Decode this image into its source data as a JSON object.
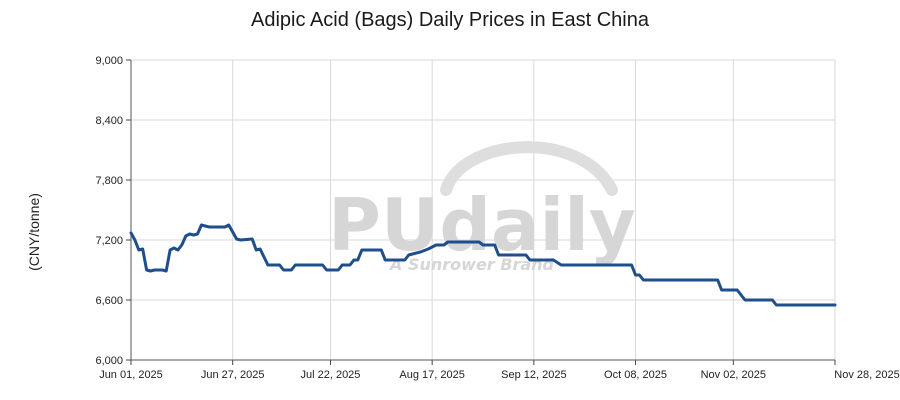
{
  "chart_data": {
    "type": "line",
    "title": "Adipic Acid (Bags) Daily Prices in East China",
    "ylabel": "(CNY/tonne)",
    "xlabel": "",
    "ylim": [
      6000,
      9000
    ],
    "y_ticks": [
      6000,
      6600,
      7200,
      7800,
      8400,
      9000
    ],
    "y_tick_labels": [
      "6,000",
      "6,600",
      "7,200",
      "7,800",
      "8,400",
      "9,000"
    ],
    "x_ticks": [
      "2025-06-01",
      "2025-06-27",
      "2025-07-22",
      "2025-08-17",
      "2025-09-12",
      "2025-10-08",
      "2025-11-02",
      "2025-11-28"
    ],
    "x_tick_labels": [
      "Jun 01, 2025",
      "Jun 27, 2025",
      "Jul 22, 2025",
      "Aug 17, 2025",
      "Sep 12, 2025",
      "Oct 08, 2025",
      "Nov 02, 2025",
      "Nov 28, 2025"
    ],
    "xlim": [
      "2025-06-01",
      "2025-11-28"
    ],
    "grid": true,
    "line_color": "#1f4e8c",
    "watermark": {
      "main": "PUdaily",
      "sub": "A Sunrower Brand"
    },
    "series": [
      {
        "points": [
          [
            "2025-06-01",
            7270
          ],
          [
            "2025-06-02",
            7200
          ],
          [
            "2025-06-03",
            7100
          ],
          [
            "2025-06-04",
            7110
          ],
          [
            "2025-06-05",
            6900
          ],
          [
            "2025-06-06",
            6890
          ],
          [
            "2025-06-07",
            6900
          ],
          [
            "2025-06-09",
            6900
          ],
          [
            "2025-06-10",
            6890
          ],
          [
            "2025-06-11",
            7100
          ],
          [
            "2025-06-12",
            7120
          ],
          [
            "2025-06-13",
            7100
          ],
          [
            "2025-06-14",
            7150
          ],
          [
            "2025-06-15",
            7240
          ],
          [
            "2025-06-16",
            7260
          ],
          [
            "2025-06-17",
            7250
          ],
          [
            "2025-06-18",
            7260
          ],
          [
            "2025-06-19",
            7350
          ],
          [
            "2025-06-20",
            7340
          ],
          [
            "2025-06-21",
            7330
          ],
          [
            "2025-06-25",
            7330
          ],
          [
            "2025-06-26",
            7350
          ],
          [
            "2025-06-28",
            7210
          ],
          [
            "2025-06-29",
            7200
          ],
          [
            "2025-07-02",
            7210
          ],
          [
            "2025-07-03",
            7100
          ],
          [
            "2025-07-04",
            7110
          ],
          [
            "2025-07-06",
            6950
          ],
          [
            "2025-07-09",
            6950
          ],
          [
            "2025-07-10",
            6900
          ],
          [
            "2025-07-12",
            6900
          ],
          [
            "2025-07-13",
            6950
          ],
          [
            "2025-07-20",
            6950
          ],
          [
            "2025-07-21",
            6900
          ],
          [
            "2025-07-24",
            6900
          ],
          [
            "2025-07-25",
            6950
          ],
          [
            "2025-07-27",
            6950
          ],
          [
            "2025-07-28",
            7000
          ],
          [
            "2025-07-29",
            7000
          ],
          [
            "2025-07-30",
            7100
          ],
          [
            "2025-08-04",
            7100
          ],
          [
            "2025-08-05",
            7000
          ],
          [
            "2025-08-10",
            7000
          ],
          [
            "2025-08-11",
            7050
          ],
          [
            "2025-08-14",
            7080
          ],
          [
            "2025-08-16",
            7110
          ],
          [
            "2025-08-18",
            7150
          ],
          [
            "2025-08-20",
            7150
          ],
          [
            "2025-08-21",
            7180
          ],
          [
            "2025-08-29",
            7180
          ],
          [
            "2025-08-30",
            7150
          ],
          [
            "2025-09-02",
            7150
          ],
          [
            "2025-09-03",
            7050
          ],
          [
            "2025-09-10",
            7050
          ],
          [
            "2025-09-11",
            7000
          ],
          [
            "2025-09-17",
            7000
          ],
          [
            "2025-09-19",
            6950
          ],
          [
            "2025-10-07",
            6950
          ],
          [
            "2025-10-08",
            6850
          ],
          [
            "2025-10-09",
            6850
          ],
          [
            "2025-10-10",
            6800
          ],
          [
            "2025-10-29",
            6800
          ],
          [
            "2025-10-30",
            6700
          ],
          [
            "2025-11-03",
            6700
          ],
          [
            "2025-11-05",
            6600
          ],
          [
            "2025-11-12",
            6600
          ],
          [
            "2025-11-13",
            6550
          ],
          [
            "2025-11-28",
            6550
          ]
        ]
      }
    ]
  }
}
